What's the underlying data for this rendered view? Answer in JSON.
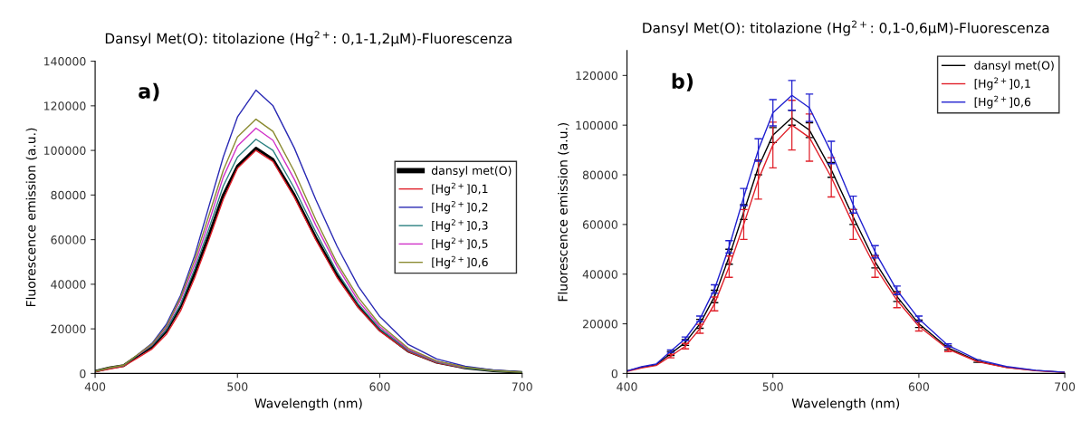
{
  "chart_data": [
    {
      "type": "line",
      "title": "Dansyl Met(O): titolazione (Hg$^{2+}$: 0,1-1,2μM)-Fluorescenza",
      "xlabel": "Wavelength (nm)",
      "ylabel": "Fluorescence emission (a.u.)",
      "x": [
        400,
        410,
        420,
        430,
        440,
        450,
        460,
        470,
        480,
        490,
        500,
        513,
        525,
        540,
        555,
        570,
        585,
        600,
        620,
        640,
        660,
        680,
        700
      ],
      "xlim": [
        400,
        700
      ],
      "xticks": [
        400,
        500,
        600,
        700
      ],
      "ylim": [
        0,
        140000
      ],
      "yticks": [
        0,
        20000,
        40000,
        60000,
        80000,
        100000,
        120000,
        140000
      ],
      "grid": false,
      "legend": "right",
      "annotations": [
        "a)"
      ],
      "series": [
        {
          "name": "dansyl met(O)",
          "color": "#000000",
          "values": [
            1000,
            2500,
            3500,
            8000,
            12000,
            19000,
            30000,
            45000,
            62000,
            80000,
            93000,
            101000,
            96000,
            80000,
            61000,
            44000,
            30000,
            19500,
            10000,
            5000,
            2500,
            1200,
            500
          ]
        },
        {
          "name": "[Hg$^{2+}$]0,1",
          "color": "#e0202a",
          "values": [
            800,
            2000,
            3200,
            7000,
            11000,
            17500,
            28000,
            43000,
            60000,
            78000,
            92000,
            100000,
            95000,
            79000,
            60000,
            43000,
            29500,
            19000,
            9800,
            4800,
            2400,
            null,
            null
          ]
        },
        {
          "name": "[Hg$^{2+}$]0,2",
          "color": "#2a2ab4",
          "values": [
            null,
            null,
            null,
            8500,
            13500,
            22000,
            35000,
            53000,
            75000,
            97000,
            115000,
            127000,
            120000,
            101000,
            78000,
            57000,
            39000,
            25500,
            13000,
            6500,
            3200,
            1500,
            600
          ]
        },
        {
          "name": "[Hg$^{2+}$]0,3",
          "color": "#2a8080",
          "values": [
            1000,
            2500,
            3600,
            8200,
            12500,
            19500,
            31000,
            47000,
            65000,
            84000,
            97000,
            105000,
            100000,
            83000,
            63500,
            45500,
            31000,
            20000,
            10300,
            5100,
            2500,
            1200,
            500
          ]
        },
        {
          "name": "[Hg$^{2+}$]0,5",
          "color": "#d030c8",
          "values": [
            null,
            null,
            null,
            8300,
            13000,
            20500,
            33000,
            49000,
            68000,
            88000,
            102000,
            110000,
            104500,
            87000,
            66500,
            48000,
            32500,
            21000,
            10800,
            5400,
            2700,
            null,
            null
          ]
        },
        {
          "name": "[Hg$^{2+}$]0,6",
          "color": "#8a8a30",
          "values": [
            1000,
            2600,
            3700,
            8500,
            13200,
            21000,
            34000,
            51000,
            71000,
            91000,
            106000,
            114000,
            108500,
            90500,
            69000,
            49500,
            34000,
            22000,
            11300,
            5600,
            2800,
            1300,
            500
          ]
        }
      ]
    },
    {
      "type": "line",
      "title": "Dansyl Met(O): titolazione (Hg$^{2+}$: 0,1-0,6μM)-Fluorescenza",
      "xlabel": "Wavelength (nm)",
      "ylabel": "Fluorescence emission (a.u.)",
      "x": [
        400,
        410,
        420,
        430,
        440,
        450,
        460,
        470,
        480,
        490,
        500,
        513,
        525,
        540,
        555,
        570,
        585,
        600,
        620,
        640,
        660,
        680,
        700
      ],
      "xlim": [
        400,
        700
      ],
      "xticks": [
        400,
        500,
        600,
        700
      ],
      "ylim": [
        0,
        130000
      ],
      "yticks": [
        0,
        20000,
        40000,
        60000,
        80000,
        100000,
        120000
      ],
      "grid": false,
      "legend": "top right",
      "annotations": [
        "b)"
      ],
      "series": [
        {
          "name": "dansyl met(O)",
          "color": "#000000",
          "values": [
            1000,
            2500,
            3500,
            8000,
            12500,
            20000,
            31000,
            47000,
            65000,
            83000,
            96000,
            103000,
            98000,
            82000,
            63000,
            45000,
            31000,
            20000,
            10300,
            5000,
            2500,
            1200,
            500
          ],
          "errors": [
            null,
            null,
            null,
            800,
            1200,
            1800,
            2500,
            3000,
            3000,
            3000,
            3000,
            3000,
            3000,
            3000,
            3000,
            2500,
            2000,
            1500,
            800,
            500,
            null,
            null,
            null
          ]
        },
        {
          "name": "[Hg$^{2+}$]0,1",
          "color": "#e0202a",
          "values": [
            800,
            2200,
            3200,
            7000,
            11000,
            18000,
            28000,
            43000,
            60000,
            78000,
            92000,
            100000,
            95000,
            79000,
            60000,
            43000,
            29500,
            19000,
            9800,
            4800,
            2400,
            1100,
            400
          ],
          "errors": [
            null,
            null,
            null,
            700,
            1100,
            1800,
            2800,
            4300,
            6000,
            7800,
            9200,
            10000,
            9500,
            7900,
            6000,
            4300,
            3000,
            1900,
            1000,
            null,
            null,
            null,
            null
          ]
        },
        {
          "name": "[Hg$^{2+}$]0,6",
          "color": "#2020d0",
          "values": [
            1000,
            2700,
            3800,
            9000,
            14000,
            22000,
            34000,
            51000,
            71000,
            90000,
            105000,
            112000,
            107000,
            89000,
            68000,
            49000,
            33500,
            22000,
            11300,
            5600,
            2800,
            1300,
            500
          ],
          "errors": [
            null,
            null,
            null,
            500,
            700,
            1100,
            1700,
            2500,
            3500,
            4500,
            5300,
            6000,
            5500,
            4500,
            3400,
            2500,
            1700,
            1100,
            600,
            null,
            null,
            null,
            null
          ]
        }
      ]
    }
  ]
}
